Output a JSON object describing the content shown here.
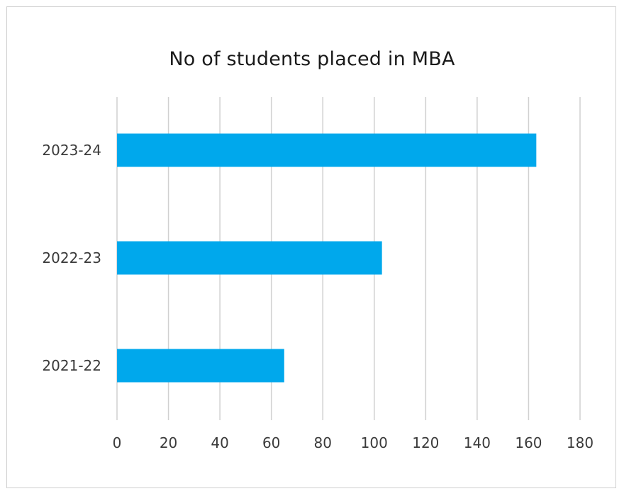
{
  "chart_data": {
    "type": "bar",
    "orientation": "horizontal",
    "title": "No of students placed in MBA",
    "categories": [
      "2023-24",
      "2022-23",
      "2021-22"
    ],
    "values": [
      163,
      103,
      65
    ],
    "xlabel": "",
    "ylabel": "",
    "xlim": [
      0,
      180
    ],
    "xticks": [
      0,
      20,
      40,
      60,
      80,
      100,
      120,
      140,
      160,
      180
    ],
    "grid": true,
    "bar_color": "#00a8ec",
    "grid_color": "#d0d0d0"
  }
}
